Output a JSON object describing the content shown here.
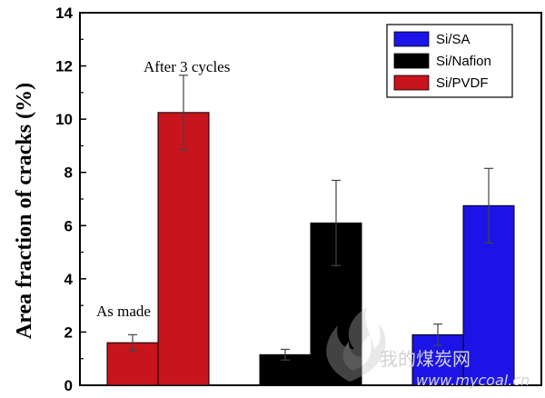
{
  "chart_data": {
    "type": "bar",
    "ylabel": "Area fraction of cracks (%)",
    "xlabel": "",
    "ylim": [
      0,
      14
    ],
    "yticks": [
      0,
      2,
      4,
      6,
      8,
      10,
      12,
      14
    ],
    "grid": false,
    "legend_position": "top-right",
    "groups": [
      {
        "name": "Si/PVDF",
        "color": "#c8141c",
        "values": [
          1.6,
          10.25
        ],
        "errors": [
          0.3,
          1.4
        ]
      },
      {
        "name": "Si/Nafion",
        "color": "#000000",
        "values": [
          1.15,
          6.1
        ],
        "errors": [
          0.2,
          1.6
        ]
      },
      {
        "name": "Si/SA",
        "color": "#1c14e6",
        "values": [
          1.9,
          6.75
        ],
        "errors": [
          0.4,
          1.4
        ]
      }
    ],
    "legend": [
      {
        "label": "Si/SA",
        "color": "#1c14e6"
      },
      {
        "label": "Si/Nafion",
        "color": "#000000"
      },
      {
        "label": "Si/PVDF",
        "color": "#c8141c"
      }
    ],
    "annotations": {
      "as_made": "As made",
      "after_cycles": "After 3 cycles"
    }
  },
  "watermark": {
    "text": "我的煤炭网",
    "url": "www.mycoal.cn"
  }
}
